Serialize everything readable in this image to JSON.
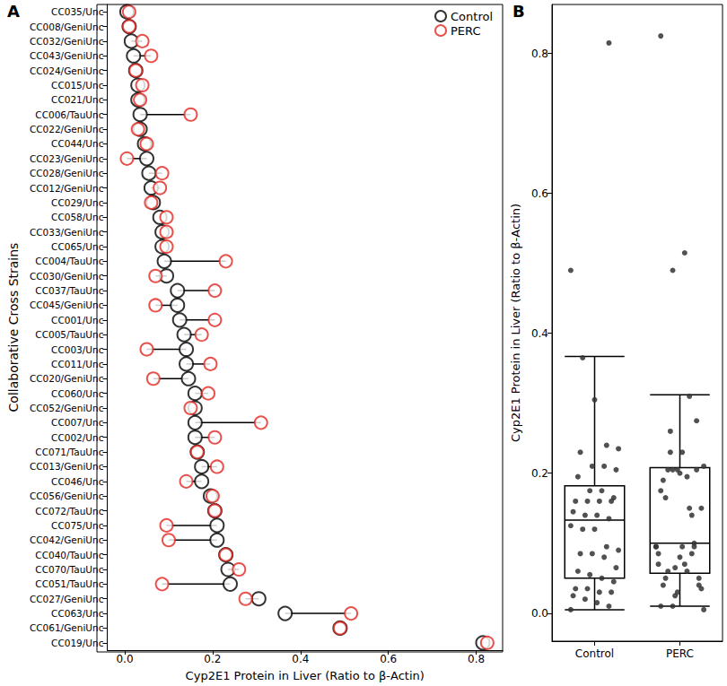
{
  "chart_data": [
    {
      "type": "dumbbell",
      "title": "A",
      "xlabel": "Cyp2E1 Protein in Liver (Ratio to β-Actin)",
      "ylabel": "Collaborative Cross Strains",
      "categories": [
        "CC035/Unc",
        "CC008/GeniUnc",
        "CC032/GeniUnc",
        "CC043/GeniUnc",
        "CC024/GeniUnc",
        "CC015/Unc",
        "CC021/Unc",
        "CC006/TauUnc",
        "CC022/GeniUnc",
        "CC044/Unc",
        "CC023/GeniUnc",
        "CC028/GeniUnc",
        "CC012/GeniUnc",
        "CC029/Unc",
        "CC058/Unc",
        "CC033/GeniUnc",
        "CC065/Unc",
        "CC004/TauUnc",
        "CC030/GeniUnc",
        "CC037/TauUnc",
        "CC045/GeniUnc",
        "CC001/Unc",
        "CC005/TauUnc",
        "CC003/Unc",
        "CC011/Unc",
        "CC020/GeniUnc",
        "CC060/Unc",
        "CC052/GeniUnc",
        "CC007/Unc",
        "CC002/Unc",
        "CC071/TauUnc",
        "CC013/GeniUnc",
        "CC046/Unc",
        "CC056/GeniUnc",
        "CC072/TauUnc",
        "CC075/Unc",
        "CC042/GeniUnc",
        "CC040/TauUnc",
        "CC070/TauUnc",
        "CC051/TauUnc",
        "CC027/GeniUnc",
        "CC063/Unc",
        "CC061/GeniUnc",
        "CC019/Unc"
      ],
      "series": [
        {
          "name": "Control",
          "color": "#000000",
          "values": [
            0.005,
            0.01,
            0.015,
            0.02,
            0.025,
            0.03,
            0.03,
            0.035,
            0.035,
            0.045,
            0.05,
            0.055,
            0.06,
            0.065,
            0.08,
            0.085,
            0.085,
            0.09,
            0.095,
            0.12,
            0.12,
            0.125,
            0.135,
            0.14,
            0.14,
            0.145,
            0.16,
            0.16,
            0.16,
            0.16,
            0.165,
            0.175,
            0.175,
            0.195,
            0.205,
            0.21,
            0.21,
            0.23,
            0.235,
            0.24,
            0.305,
            0.365,
            0.49,
            0.815
          ]
        },
        {
          "name": "PERC",
          "color": "#e3261f",
          "values": [
            0.01,
            0.01,
            0.04,
            0.06,
            0.025,
            0.04,
            0.035,
            0.15,
            0.03,
            0.05,
            0.005,
            0.085,
            0.08,
            0.06,
            0.095,
            0.095,
            0.095,
            0.23,
            0.07,
            0.205,
            0.07,
            0.205,
            0.175,
            0.05,
            0.195,
            0.065,
            0.19,
            0.15,
            0.31,
            0.205,
            0.165,
            0.21,
            0.14,
            0.2,
            0.205,
            0.095,
            0.1,
            0.23,
            0.26,
            0.085,
            0.275,
            0.515,
            0.49,
            0.825
          ]
        }
      ],
      "xlim": [
        -0.04,
        0.86
      ],
      "xticks": [
        {
          "value": 0,
          "label": "0.0"
        },
        0.2,
        0.4,
        0.6,
        0.8
      ],
      "marker": "circle",
      "legend": "top-right",
      "grid": false
    },
    {
      "type": "boxplot",
      "title": "B",
      "ylabel": "Cyp2E1 Protein in Liver (Ratio to β-Actin)",
      "categories": [
        "Control",
        "PERC"
      ],
      "boxes": [
        [
          0.005,
          0.05,
          0.133,
          0.182,
          0.367
        ],
        [
          0.01,
          0.057,
          0.1,
          0.208,
          0.312
        ]
      ],
      "points": [
        [
          0.005,
          0.01,
          0.015,
          0.02,
          0.025,
          0.03,
          0.03,
          0.035,
          0.035,
          0.045,
          0.05,
          0.055,
          0.06,
          0.065,
          0.08,
          0.085,
          0.085,
          0.09,
          0.095,
          0.12,
          0.12,
          0.125,
          0.135,
          0.14,
          0.14,
          0.145,
          0.16,
          0.16,
          0.16,
          0.16,
          0.165,
          0.175,
          0.175,
          0.195,
          0.205,
          0.21,
          0.21,
          0.23,
          0.235,
          0.24,
          0.305,
          0.365,
          0.49,
          0.815
        ],
        [
          0.01,
          0.01,
          0.04,
          0.06,
          0.025,
          0.04,
          0.035,
          0.15,
          0.03,
          0.05,
          0.005,
          0.085,
          0.08,
          0.06,
          0.095,
          0.095,
          0.095,
          0.23,
          0.07,
          0.205,
          0.07,
          0.205,
          0.175,
          0.05,
          0.195,
          0.065,
          0.19,
          0.15,
          0.31,
          0.205,
          0.165,
          0.21,
          0.14,
          0.2,
          0.205,
          0.095,
          0.1,
          0.23,
          0.26,
          0.085,
          0.275,
          0.515,
          0.49,
          0.825
        ]
      ],
      "color": "#333333",
      "ylim": [
        -0.04,
        0.87
      ],
      "yticks": [
        {
          "value": 0,
          "label": "0.0"
        },
        0.2,
        0.4,
        0.6,
        0.8
      ],
      "grid": false
    }
  ]
}
